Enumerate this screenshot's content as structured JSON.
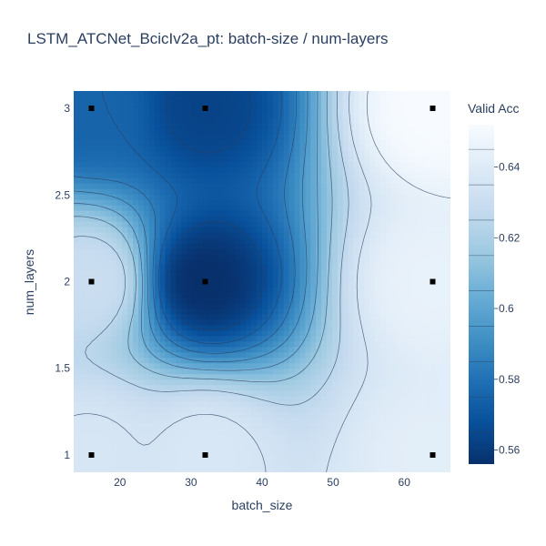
{
  "chart_data": {
    "type": "contour",
    "title": "LSTM_ATCNet_BcicIv2a_pt: batch-size / num-layers",
    "xlabel": "batch_size",
    "ylabel": "num_layers",
    "colorbar_title": "Valid Acc",
    "xlim": [
      13.5,
      66.5
    ],
    "ylim": [
      0.9,
      3.1
    ],
    "x_ticks": [
      20,
      30,
      40,
      50,
      60
    ],
    "y_ticks": [
      1,
      1.5,
      2,
      2.5,
      3
    ],
    "y_tick_labels": [
      "1",
      "1.5",
      "2",
      "2.5",
      "3"
    ],
    "colorbar_range": [
      0.556,
      0.652
    ],
    "colorbar_ticks": [
      0.56,
      0.58,
      0.6,
      0.62,
      0.64
    ],
    "colorbar_tick_labels": [
      "0.56",
      "0.58",
      "0.6",
      "0.62",
      "0.64"
    ],
    "colorscale": [
      "#08306b",
      "#08519c",
      "#2171b5",
      "#4292c6",
      "#6baed6",
      "#9ecae1",
      "#c6dbef",
      "#deebf7",
      "#f7fbff"
    ],
    "points": [
      {
        "x": 16,
        "y": 1,
        "value": 0.636
      },
      {
        "x": 16,
        "y": 2,
        "value": 0.63
      },
      {
        "x": 16,
        "y": 3,
        "value": 0.575
      },
      {
        "x": 32,
        "y": 1,
        "value": 0.637
      },
      {
        "x": 32,
        "y": 2,
        "value": 0.556
      },
      {
        "x": 32,
        "y": 3,
        "value": 0.563
      },
      {
        "x": 64,
        "y": 1,
        "value": 0.642
      },
      {
        "x": 64,
        "y": 2,
        "value": 0.645
      },
      {
        "x": 64,
        "y": 3,
        "value": 0.652
      }
    ],
    "legend": "colorbar right"
  }
}
